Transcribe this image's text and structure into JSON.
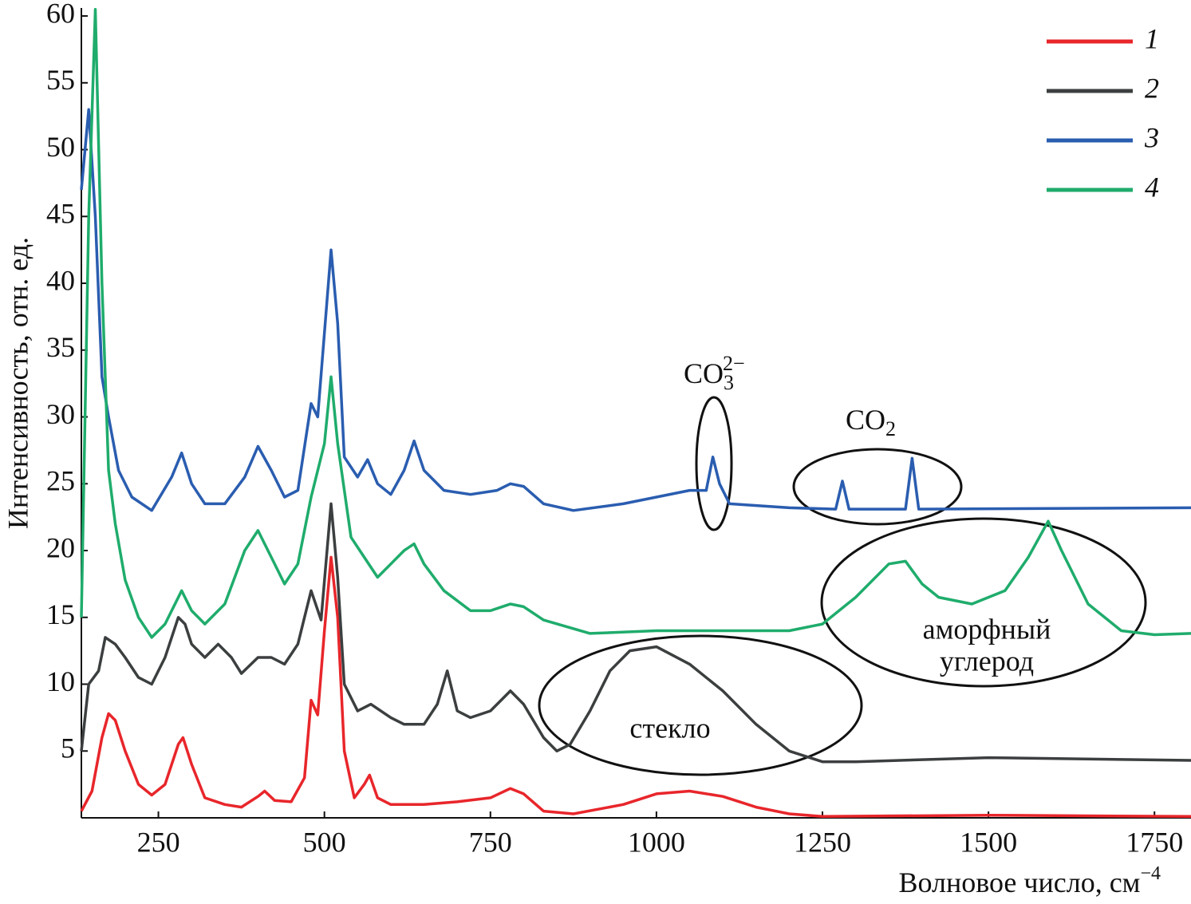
{
  "chart_data": {
    "type": "line",
    "x_label": "Волновое число, см",
    "x_label_superscript": "−4",
    "y_label": "Интенсивность, отн. ед.",
    "xlim": [
      134,
      1805
    ],
    "ylim": [
      0,
      60.6
    ],
    "xticks": [
      250,
      500,
      750,
      1000,
      1250,
      1500,
      1750
    ],
    "yticks": [
      5,
      10,
      15,
      20,
      25,
      30,
      35,
      40,
      45,
      50,
      55,
      60
    ],
    "legend_position": "upper right",
    "annotations": {
      "co3": {
        "text": "CO",
        "sub": "3",
        "sup": "2−"
      },
      "co2": {
        "text": "CO",
        "sub": "2"
      },
      "amorphous": [
        "аморфный",
        "углерод"
      ],
      "glass": "стекло"
    },
    "series": [
      {
        "name": "1",
        "color": "#e8262b",
        "x": [
          134,
          150,
          165,
          175,
          185,
          200,
          220,
          240,
          260,
          280,
          287,
          300,
          320,
          350,
          375,
          400,
          410,
          425,
          450,
          470,
          480,
          490,
          500,
          510,
          520,
          530,
          545,
          560,
          568,
          580,
          600,
          650,
          700,
          750,
          780,
          800,
          830,
          875,
          950,
          1000,
          1050,
          1100,
          1150,
          1200,
          1250,
          1500,
          1805
        ],
        "values": [
          0.5,
          2,
          6,
          7.8,
          7.3,
          5,
          2.5,
          1.7,
          2.5,
          5.5,
          6,
          4,
          1.5,
          1,
          0.8,
          1.6,
          2,
          1.3,
          1.2,
          3,
          8.8,
          7.7,
          14,
          19.5,
          15,
          5,
          1.5,
          2.5,
          3.2,
          1.5,
          1,
          1,
          1.2,
          1.5,
          2.2,
          1.8,
          0.5,
          0.3,
          1,
          1.8,
          2,
          1.6,
          0.8,
          0.3,
          0.1,
          0.2,
          0.1
        ]
      },
      {
        "name": "2",
        "color": "#3c3f40",
        "x": [
          134,
          145,
          160,
          170,
          185,
          200,
          220,
          240,
          260,
          280,
          290,
          300,
          320,
          340,
          360,
          375,
          400,
          420,
          440,
          460,
          480,
          495,
          510,
          520,
          530,
          550,
          570,
          600,
          620,
          650,
          670,
          685,
          700,
          720,
          750,
          780,
          800,
          830,
          850,
          870,
          900,
          930,
          960,
          1000,
          1050,
          1100,
          1150,
          1200,
          1250,
          1300,
          1500,
          1805
        ],
        "values": [
          5,
          10,
          11,
          13.5,
          13,
          12,
          10.5,
          10,
          12,
          15,
          14.5,
          13,
          12,
          13,
          12,
          10.8,
          12,
          12,
          11.5,
          13,
          17,
          14.8,
          23.5,
          18,
          10,
          8,
          8.5,
          7.5,
          7,
          7,
          8.5,
          11,
          8,
          7.5,
          8,
          9.5,
          8.5,
          6,
          5,
          5.5,
          8,
          11,
          12.5,
          12.8,
          11.5,
          9.5,
          7,
          5,
          4.2,
          4.2,
          4.5,
          4.3
        ]
      },
      {
        "name": "3",
        "color": "#2a5db0",
        "x": [
          134,
          145,
          155,
          165,
          175,
          190,
          210,
          240,
          270,
          285,
          300,
          320,
          350,
          380,
          400,
          420,
          440,
          460,
          480,
          490,
          510,
          520,
          530,
          550,
          565,
          580,
          600,
          620,
          635,
          650,
          680,
          720,
          760,
          780,
          800,
          830,
          875,
          950,
          1000,
          1050,
          1075,
          1085,
          1095,
          1110,
          1200,
          1270,
          1280,
          1290,
          1375,
          1385,
          1395,
          1805
        ],
        "values": [
          47,
          53,
          45,
          33,
          30,
          26,
          24,
          23,
          25.5,
          27.3,
          25,
          23.5,
          23.5,
          25.5,
          27.8,
          26,
          24,
          24.5,
          31,
          30,
          42.5,
          37,
          27,
          25.5,
          26.8,
          25,
          24.2,
          26,
          28.2,
          26,
          24.5,
          24.2,
          24.5,
          25,
          24.8,
          23.5,
          23,
          23.5,
          24,
          24.5,
          24.5,
          27,
          25,
          23.5,
          23.2,
          23.1,
          25.2,
          23.1,
          23.1,
          26.9,
          23.1,
          23.2
        ]
      },
      {
        "name": "4",
        "color": "#1fac6c",
        "x": [
          134,
          145,
          155,
          165,
          175,
          185,
          200,
          220,
          240,
          260,
          285,
          300,
          320,
          350,
          380,
          400,
          420,
          440,
          460,
          480,
          500,
          510,
          520,
          540,
          560,
          580,
          600,
          620,
          635,
          650,
          680,
          720,
          750,
          780,
          800,
          830,
          900,
          1000,
          1100,
          1200,
          1250,
          1300,
          1350,
          1375,
          1400,
          1425,
          1475,
          1525,
          1560,
          1590,
          1610,
          1650,
          1700,
          1750,
          1805
        ],
        "values": [
          15,
          45,
          60.5,
          40,
          26,
          22,
          17.8,
          15,
          13.5,
          14.5,
          17,
          15.5,
          14.5,
          16,
          20,
          21.5,
          19.5,
          17.5,
          19,
          24,
          28,
          33,
          28,
          21,
          19.5,
          18,
          19,
          20,
          20.5,
          19,
          17,
          15.5,
          15.5,
          16,
          15.8,
          14.8,
          13.8,
          14,
          14,
          14,
          14.5,
          16.5,
          19,
          19.2,
          17.5,
          16.5,
          16,
          17,
          19.5,
          22.2,
          20,
          16,
          14,
          13.7,
          13.8
        ]
      }
    ]
  }
}
